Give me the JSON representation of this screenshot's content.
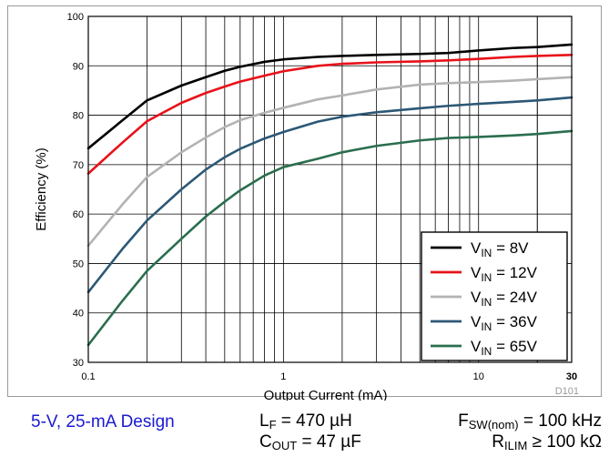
{
  "chart_data": {
    "type": "line",
    "title": "",
    "xlabel": "Output Current (mA)",
    "ylabel": "Efficiency (%)",
    "xscale": "log",
    "xlim": [
      0.1,
      30
    ],
    "ylim": [
      30,
      100
    ],
    "x_tick_labels": [
      "0.1",
      "1",
      "10",
      "30"
    ],
    "y_tick_labels": [
      "30",
      "40",
      "50",
      "60",
      "70",
      "80",
      "90",
      "100"
    ],
    "grid": true,
    "legend_position": "bottom-right",
    "figure_id": "D101",
    "series": [
      {
        "name": "V_IN = 8V",
        "name_main": "V",
        "name_sub": "IN",
        "name_rest": " = 8V",
        "color": "#000000",
        "x": [
          0.1,
          0.15,
          0.2,
          0.3,
          0.4,
          0.5,
          0.6,
          0.8,
          1,
          1.5,
          2,
          3,
          5,
          7,
          10,
          15,
          20,
          30
        ],
        "y": [
          73.3,
          79,
          83,
          86,
          87.7,
          89,
          89.8,
          90.8,
          91.3,
          91.8,
          92,
          92.2,
          92.4,
          92.6,
          93.1,
          93.6,
          93.8,
          94.3
        ]
      },
      {
        "name": "V_IN = 12V",
        "name_main": "V",
        "name_sub": "IN",
        "name_rest": " = 12V",
        "color": "#e8121a",
        "x": [
          0.1,
          0.15,
          0.2,
          0.3,
          0.4,
          0.5,
          0.6,
          0.8,
          1,
          1.5,
          2,
          3,
          5,
          7,
          10,
          15,
          20,
          30
        ],
        "y": [
          68.2,
          74.5,
          78.8,
          82.5,
          84.5,
          85.8,
          86.8,
          88,
          88.9,
          90,
          90.4,
          90.7,
          90.9,
          91.1,
          91.4,
          91.8,
          92,
          92.2
        ]
      },
      {
        "name": "V_IN = 24V",
        "name_main": "V",
        "name_sub": "IN",
        "name_rest": " = 24V",
        "color": "#b3b3b3",
        "x": [
          0.1,
          0.15,
          0.2,
          0.3,
          0.4,
          0.5,
          0.6,
          0.8,
          1,
          1.5,
          2,
          3,
          5,
          7,
          10,
          15,
          20,
          30
        ],
        "y": [
          53.6,
          62,
          67.5,
          72.5,
          75.5,
          77.6,
          79,
          80.5,
          81.5,
          83.2,
          84,
          85.2,
          86.2,
          86.5,
          86.7,
          87,
          87.3,
          87.7
        ]
      },
      {
        "name": "V_IN = 36V",
        "name_main": "V",
        "name_sub": "IN",
        "name_rest": " = 36V",
        "color": "#2c5876",
        "x": [
          0.1,
          0.15,
          0.2,
          0.3,
          0.4,
          0.5,
          0.6,
          0.8,
          1,
          1.5,
          2,
          3,
          5,
          7,
          10,
          15,
          20,
          30
        ],
        "y": [
          44.2,
          53,
          58.7,
          65,
          69,
          71.5,
          73.2,
          75.3,
          76.6,
          78.7,
          79.7,
          80.6,
          81.4,
          81.9,
          82.3,
          82.7,
          83,
          83.6
        ]
      },
      {
        "name": "V_IN = 65V",
        "name_main": "V",
        "name_sub": "IN",
        "name_rest": " = 65V",
        "color": "#2a6e4e",
        "x": [
          0.1,
          0.15,
          0.2,
          0.3,
          0.4,
          0.5,
          0.6,
          0.8,
          1,
          1.5,
          2,
          3,
          5,
          7,
          10,
          15,
          20,
          30
        ],
        "y": [
          33.5,
          42.5,
          48.5,
          55,
          59.5,
          62.5,
          64.8,
          67.8,
          69.5,
          71.2,
          72.5,
          73.8,
          74.9,
          75.4,
          75.6,
          75.9,
          76.2,
          76.8
        ]
      }
    ]
  },
  "captions": {
    "design": "5-V, 25-mA Design",
    "lf": {
      "main": "L",
      "sub": "F",
      "rest": " = 470 µH"
    },
    "cout": {
      "main": "C",
      "sub": "OUT",
      "rest": " = 47 µF"
    },
    "fsw": {
      "main": "F",
      "sub": "SW(nom)",
      "rest": " = 100 kHz"
    },
    "rilim": {
      "main": "R",
      "sub": "ILIM",
      "rest": " ≥ 100 kΩ"
    }
  }
}
